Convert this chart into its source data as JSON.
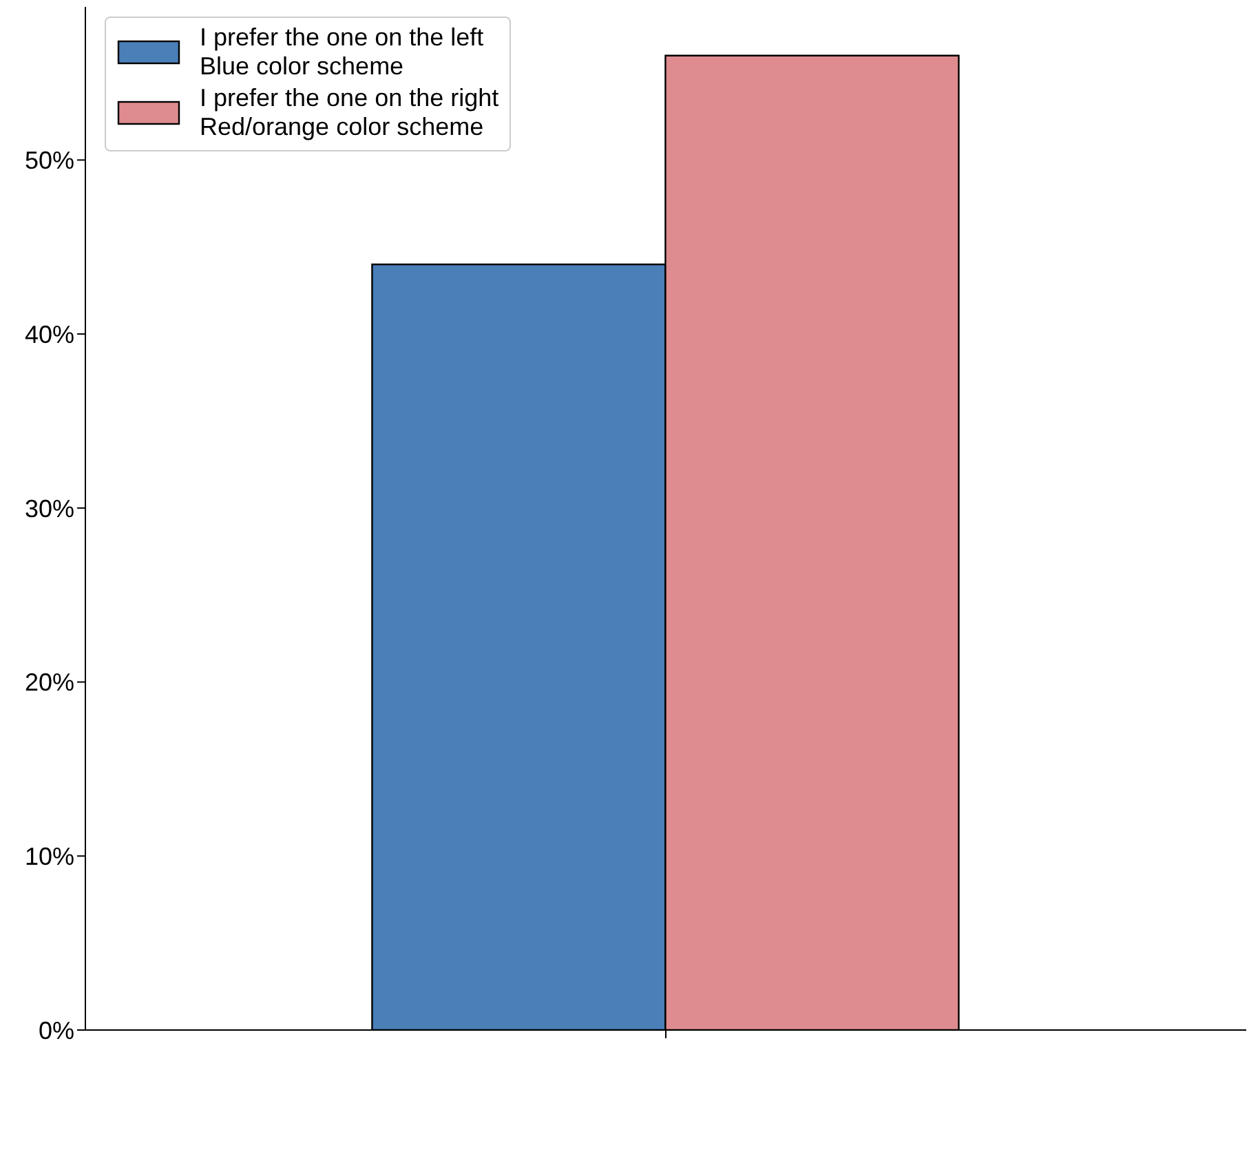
{
  "chart_data": {
    "type": "bar",
    "categories": [
      null
    ],
    "series": [
      {
        "name": "I prefer the one on the left\nBlue color scheme",
        "color": "#4a7fb8",
        "values": [
          44
        ]
      },
      {
        "name": "I prefer the one on the right\nRed/orange color scheme",
        "color": "#de8c8f",
        "values": [
          56
        ]
      }
    ],
    "ylim": [
      0,
      58.8
    ],
    "yticks": [
      {
        "value": 0,
        "label": "0%"
      },
      {
        "value": 10,
        "label": "10%"
      },
      {
        "value": 20,
        "label": "20%"
      },
      {
        "value": 30,
        "label": "30%"
      },
      {
        "value": 40,
        "label": "40%"
      },
      {
        "value": 50,
        "label": "50%"
      }
    ],
    "grid": false,
    "legend": "top left"
  }
}
